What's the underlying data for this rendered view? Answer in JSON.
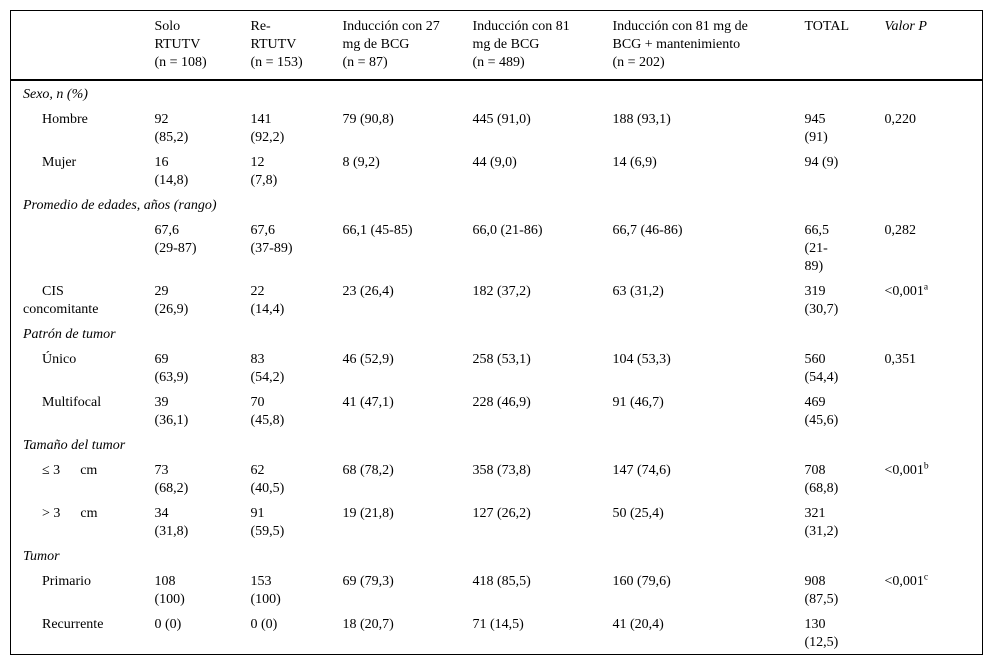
{
  "table": {
    "headers": [
      "",
      "Solo\nRTUTV\n(n = 108)",
      "Re-\nRTUTV\n(n = 153)",
      "Inducción con 27\nmg de BCG\n(n = 87)",
      "Inducción con 81\nmg de BCG\n(n = 489)",
      "Inducción con 81 mg de\nBCG + mantenimiento\n(n = 202)",
      "TOTAL",
      "Valor P"
    ],
    "rows": [
      {
        "type": "section",
        "label": "Sexo, n (%)",
        "cells": []
      },
      {
        "type": "item",
        "label": "Hombre",
        "cells": [
          "92\n(85,2)",
          "141\n(92,2)",
          "79 (90,8)",
          "445 (91,0)",
          "188 (93,1)",
          "945\n(91)",
          "0,220"
        ]
      },
      {
        "type": "item",
        "label": "Mujer",
        "cells": [
          "16\n(14,8)",
          "12\n(7,8)",
          "8 (9,2)",
          "44 (9,0)",
          "14 (6,9)",
          "94 (9)",
          ""
        ]
      },
      {
        "type": "section",
        "label": "Promedio de edades, años (rango)",
        "cells": []
      },
      {
        "type": "blank",
        "label": "",
        "cells": [
          "67,6\n(29-87)",
          "67,6\n(37-89)",
          "66,1 (45-85)",
          "66,0 (21-86)",
          "66,7 (46-86)",
          "66,5\n(21-\n89)",
          "0,282"
        ]
      },
      {
        "type": "cis",
        "label": "CIS\nconcomitante",
        "cells": [
          "29\n(26,9)",
          "22\n(14,4)",
          "23 (26,4)",
          "182 (37,2)",
          "63 (31,2)",
          "319\n(30,7)",
          "<0,001^a"
        ]
      },
      {
        "type": "section",
        "label": "Patrón de tumor",
        "cells": []
      },
      {
        "type": "item",
        "label": "Único",
        "cells": [
          "69\n(63,9)",
          "83\n(54,2)",
          "46 (52,9)",
          "258 (53,1)",
          "104 (53,3)",
          "560\n(54,4)",
          "0,351"
        ]
      },
      {
        "type": "item",
        "label": "Multifocal",
        "cells": [
          "39\n(36,1)",
          "70\n(45,8)",
          "41 (47,1)",
          "228 (46,9)",
          "91 (46,7)",
          "469\n(45,6)",
          ""
        ]
      },
      {
        "type": "section",
        "label": "Tamaño del tumor",
        "cells": []
      },
      {
        "type": "size",
        "label": "≤ 3",
        "label_extra": "cm",
        "cells": [
          "73\n(68,2)",
          "62\n(40,5)",
          "68 (78,2)",
          "358 (73,8)",
          "147 (74,6)",
          "708\n(68,8)",
          "<0,001^b"
        ]
      },
      {
        "type": "size",
        "label": "> 3",
        "label_extra": "cm",
        "cells": [
          "34\n(31,8)",
          "91\n(59,5)",
          "19 (21,8)",
          "127 (26,2)",
          "50 (25,4)",
          "321\n(31,2)",
          ""
        ]
      },
      {
        "type": "section",
        "label": "Tumor",
        "cells": []
      },
      {
        "type": "item",
        "label": "Primario",
        "cells": [
          "108\n(100)",
          "153\n(100)",
          "69 (79,3)",
          "418 (85,5)",
          "160 (79,6)",
          "908\n(87,5)",
          "<0,001^c"
        ]
      },
      {
        "type": "item",
        "label": "Recurrente",
        "cells": [
          "0 (0)",
          "0 (0)",
          "18 (20,7)",
          "71 (14,5)",
          "41 (20,4)",
          "130\n(12,5)",
          ""
        ]
      }
    ]
  }
}
